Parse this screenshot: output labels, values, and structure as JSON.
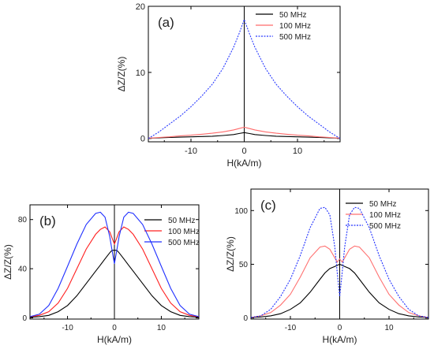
{
  "chart_data": [
    {
      "type": "line",
      "panel_label": "(a)",
      "xlabel": "H(kA/m)",
      "ylabel": "ΔZ/Z(%)",
      "xlim": [
        -18,
        18
      ],
      "ylim": [
        -0.5,
        20
      ],
      "xticks": [
        -10,
        0,
        10
      ],
      "yticks": [
        0,
        10,
        20
      ],
      "x_tick_labels": [
        "-10",
        "0",
        "10"
      ],
      "y_tick_labels": [
        "0",
        "10",
        "20"
      ],
      "legend_position": "top-right",
      "grid": false,
      "x": [
        -18,
        -16,
        -14,
        -12,
        -10,
        -8,
        -6,
        -4,
        -2,
        -1,
        0,
        1,
        2,
        4,
        6,
        8,
        10,
        12,
        14,
        16,
        18
      ],
      "series": [
        {
          "name": "50 MHz",
          "color": "#000000",
          "style": "solid",
          "values": [
            0.05,
            0.1,
            0.15,
            0.2,
            0.25,
            0.3,
            0.35,
            0.45,
            0.6,
            0.75,
            0.9,
            0.75,
            0.6,
            0.45,
            0.35,
            0.3,
            0.25,
            0.2,
            0.15,
            0.1,
            0.05
          ]
        },
        {
          "name": "100 MHz",
          "color": "#ff6a6a",
          "style": "solid",
          "values": [
            0.05,
            0.15,
            0.25,
            0.4,
            0.5,
            0.65,
            0.8,
            1.0,
            1.3,
            1.5,
            1.7,
            1.5,
            1.3,
            1.0,
            0.8,
            0.65,
            0.5,
            0.4,
            0.25,
            0.15,
            0.05
          ]
        },
        {
          "name": "500 MHz",
          "color": "#2a3bff",
          "style": "dotted",
          "values": [
            0.0,
            1.0,
            2.2,
            3.4,
            4.8,
            6.4,
            8.2,
            10.6,
            13.8,
            15.8,
            18.0,
            15.8,
            13.8,
            10.6,
            8.2,
            6.4,
            4.8,
            3.4,
            2.2,
            1.0,
            0.0
          ]
        }
      ]
    },
    {
      "type": "line",
      "panel_label": "(b)",
      "xlabel": "H(kA/m)",
      "ylabel": "ΔZ/Z(%)",
      "xlim": [
        -18,
        18
      ],
      "ylim": [
        -1,
        92
      ],
      "xticks": [
        -10,
        0,
        10
      ],
      "yticks": [
        0,
        40,
        80
      ],
      "x_tick_labels": [
        "-10",
        "0",
        "10"
      ],
      "y_tick_labels": [
        "0",
        "40",
        "80"
      ],
      "legend_position": "top-right",
      "grid": false,
      "x": [
        -18,
        -16,
        -14,
        -12,
        -10,
        -8,
        -6,
        -4,
        -3,
        -2,
        -1,
        -0.5,
        0,
        0.5,
        1,
        2,
        3,
        4,
        6,
        8,
        10,
        12,
        14,
        16,
        18
      ],
      "series": [
        {
          "name": "50 MHz",
          "color": "#000000",
          "style": "solid",
          "values": [
            0.5,
            1,
            2,
            5,
            10,
            18,
            28,
            38,
            43,
            48,
            53,
            55,
            55,
            55,
            53,
            48,
            43,
            38,
            28,
            18,
            10,
            5,
            2,
            1,
            0.5
          ]
        },
        {
          "name": "100 MHz",
          "color": "#ff2020",
          "style": "solid",
          "values": [
            1,
            2,
            5,
            12,
            24,
            40,
            56,
            68,
            72,
            74,
            70,
            65,
            60,
            65,
            70,
            74,
            72,
            68,
            56,
            40,
            24,
            12,
            5,
            2,
            1
          ]
        },
        {
          "name": "500 MHz",
          "color": "#2030ff",
          "style": "solid",
          "values": [
            1,
            3,
            10,
            24,
            42,
            60,
            76,
            85,
            86,
            82,
            66,
            55,
            44,
            55,
            66,
            82,
            86,
            85,
            76,
            60,
            42,
            24,
            10,
            3,
            1
          ]
        }
      ]
    },
    {
      "type": "line",
      "panel_label": "(c)",
      "xlabel": "H(kA/m)",
      "ylabel": "ΔZ/Z(%)",
      "xlim": [
        -18,
        18
      ],
      "ylim": [
        -1,
        120
      ],
      "xticks": [
        -10,
        0,
        10
      ],
      "yticks": [
        0,
        50,
        100
      ],
      "x_tick_labels": [
        "-10",
        "0",
        "10"
      ],
      "y_tick_labels": [
        "0",
        "50",
        "100"
      ],
      "legend_position": "top-right",
      "grid": false,
      "x": [
        -18,
        -16,
        -14,
        -12,
        -10,
        -8,
        -6,
        -4,
        -3,
        -2,
        -1,
        -0.5,
        0,
        0.5,
        1,
        2,
        3,
        4,
        6,
        8,
        10,
        12,
        14,
        16,
        18
      ],
      "series": [
        {
          "name": "50 MHz",
          "color": "#000000",
          "style": "solid",
          "values": [
            0.5,
            1,
            2,
            4,
            8,
            14,
            24,
            36,
            42,
            46,
            48,
            49,
            50,
            49,
            48,
            46,
            42,
            36,
            24,
            14,
            8,
            4,
            2,
            1,
            0.5
          ]
        },
        {
          "name": "100 MHz",
          "color": "#ff7070",
          "style": "solid",
          "values": [
            0.5,
            2,
            5,
            12,
            22,
            38,
            56,
            66,
            67,
            64,
            56,
            52,
            55,
            52,
            56,
            64,
            67,
            66,
            56,
            38,
            22,
            12,
            5,
            2,
            0.5
          ]
        },
        {
          "name": "500 MHz",
          "color": "#2030ff",
          "style": "dotted",
          "values": [
            0.5,
            2,
            8,
            20,
            36,
            58,
            84,
            102,
            103,
            96,
            66,
            42,
            20,
            42,
            66,
            96,
            103,
            102,
            84,
            58,
            36,
            20,
            8,
            2,
            0.5
          ]
        }
      ]
    }
  ]
}
